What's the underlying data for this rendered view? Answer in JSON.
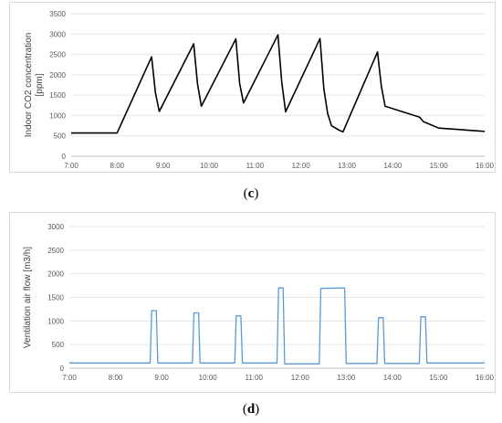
{
  "panels": [
    {
      "label_open": "(",
      "label_letter": "c",
      "label_close": ")"
    },
    {
      "label_open": "(",
      "label_letter": "d",
      "label_close": ")"
    }
  ],
  "chart_data": [
    {
      "type": "line",
      "ylabel": "Indoor CO2 concentration [ppm]",
      "xlabel": "",
      "title": "",
      "ylim": [
        0,
        3500
      ],
      "y_ticks": [
        0,
        500,
        1000,
        1500,
        2000,
        2500,
        3000,
        3500
      ],
      "x_range": [
        "7:00",
        "16:00"
      ],
      "x_tick_labels": [
        "7:00",
        "8:00",
        "9:00",
        "10:00",
        "11:00",
        "12:00",
        "13:00",
        "14:00",
        "15:00",
        "16:00"
      ],
      "grid": true,
      "line_color": "#000000",
      "series": [
        {
          "x": [
            "7:00",
            "8:00",
            "8:45",
            "8:50",
            "8:55",
            "9:40",
            "9:45",
            "9:50",
            "10:35",
            "10:40",
            "10:45",
            "11:30",
            "11:35",
            "11:40",
            "12:25",
            "12:30",
            "12:35",
            "12:40",
            "12:50",
            "12:55",
            "13:40",
            "13:45",
            "13:50",
            "14:35",
            "14:40",
            "15:00",
            "16:00"
          ],
          "y": [
            570,
            570,
            2440,
            1560,
            1100,
            2760,
            1780,
            1230,
            2880,
            1780,
            1310,
            2980,
            1820,
            1090,
            2890,
            1660,
            1050,
            750,
            640,
            600,
            2560,
            1720,
            1230,
            960,
            850,
            690,
            610
          ]
        }
      ]
    },
    {
      "type": "line",
      "ylabel": "Ventilation air flow [m3/h]",
      "xlabel": "",
      "title": "",
      "ylim": [
        0,
        3000
      ],
      "y_ticks": [
        0,
        500,
        1000,
        1500,
        2000,
        2500,
        3000
      ],
      "x_range": [
        "7:00",
        "16:00"
      ],
      "x_tick_labels": [
        "7:00",
        "8:00",
        "9:00",
        "10:00",
        "11:00",
        "12:00",
        "13:00",
        "14:00",
        "15:00",
        "16:00"
      ],
      "grid": true,
      "line_color": "#5b9bd5",
      "series": [
        {
          "x": [
            "7:00",
            "8:45",
            "8:47",
            "8:53",
            "8:55",
            "9:40",
            "9:42",
            "9:48",
            "9:50",
            "10:35",
            "10:37",
            "10:43",
            "10:45",
            "11:30",
            "11:32",
            "11:38",
            "11:40",
            "12:25",
            "12:27",
            "12:58",
            "13:00",
            "13:40",
            "13:42",
            "13:48",
            "13:50",
            "14:35",
            "14:37",
            "14:43",
            "14:45",
            "16:00"
          ],
          "y": [
            110,
            110,
            1220,
            1220,
            110,
            110,
            1170,
            1170,
            110,
            110,
            1110,
            1110,
            110,
            110,
            1700,
            1700,
            90,
            90,
            1690,
            1700,
            100,
            100,
            1070,
            1070,
            100,
            100,
            1090,
            1090,
            110,
            110
          ]
        }
      ]
    }
  ]
}
